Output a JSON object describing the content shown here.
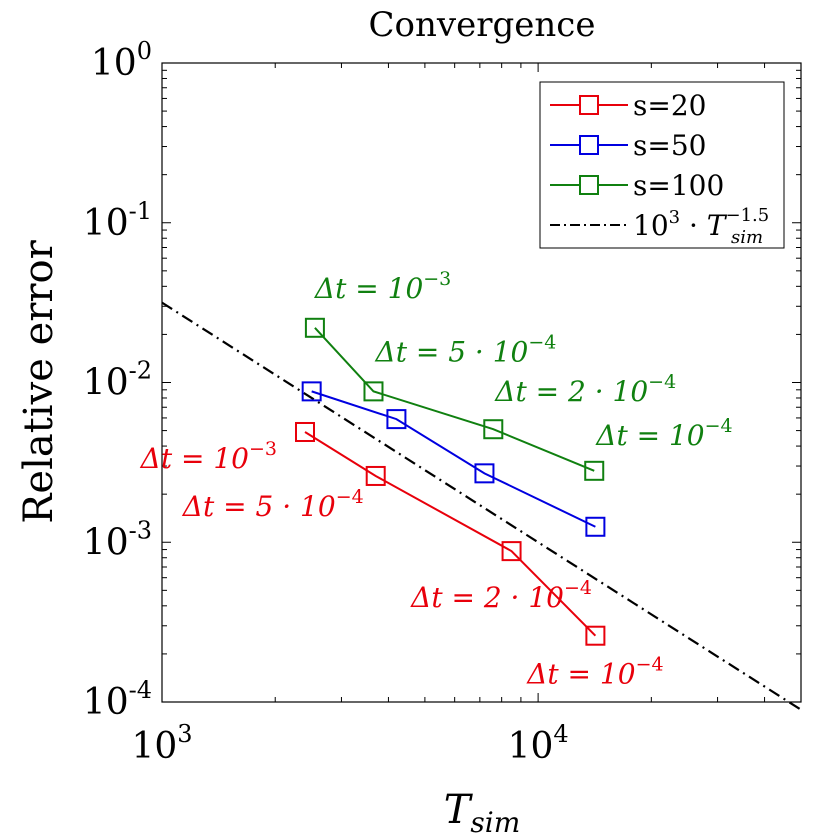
{
  "chart_data": {
    "type": "line",
    "title": "Convergence",
    "xlabel": "T_sim",
    "ylabel": "Relative error",
    "xscale": "log",
    "yscale": "log",
    "xlim": [
      1000,
      50000
    ],
    "ylim": [
      0.0001,
      1
    ],
    "x_ticks": [
      {
        "value": 1000,
        "base": "10",
        "exp": "3"
      },
      {
        "value": 10000,
        "base": "10",
        "exp": "4"
      }
    ],
    "y_ticks": [
      {
        "value": 0.0001,
        "base": "10",
        "exp": "-4"
      },
      {
        "value": 0.001,
        "base": "10",
        "exp": "-3"
      },
      {
        "value": 0.01,
        "base": "10",
        "exp": "-2"
      },
      {
        "value": 0.1,
        "base": "10",
        "exp": "-1"
      },
      {
        "value": 1,
        "base": "10",
        "exp": "0"
      }
    ],
    "legend_position": "top-right",
    "series": [
      {
        "name": "s=20",
        "color": "#e8000b",
        "marker": "square",
        "x": [
          2400,
          3700,
          8500,
          14200
        ],
        "y": [
          0.0049,
          0.0026,
          0.00088,
          0.00026
        ],
        "annotations": [
          {
            "main": "Δt = 10",
            "sup": "−3"
          },
          {
            "main": "Δt = 5 · 10",
            "sup": "−4"
          },
          {
            "main": "Δt = 2 · 10",
            "sup": "−4"
          },
          {
            "main": "Δt = 10",
            "sup": "−4"
          }
        ]
      },
      {
        "name": "s=50",
        "color": "#0000e0",
        "marker": "square",
        "x": [
          2500,
          4200,
          7200,
          14200
        ],
        "y": [
          0.0088,
          0.0059,
          0.0027,
          0.00125
        ],
        "annotations": []
      },
      {
        "name": "s=100",
        "color": "#108010",
        "marker": "square",
        "x": [
          2550,
          3650,
          7600,
          14100
        ],
        "y": [
          0.022,
          0.0088,
          0.0051,
          0.0028
        ],
        "annotations": [
          {
            "main": "Δt = 10",
            "sup": "−3"
          },
          {
            "main": "Δt = 5 · 10",
            "sup": "−4"
          },
          {
            "main": "Δt = 2 · 10",
            "sup": "−4"
          },
          {
            "main": "Δt = 10",
            "sup": "−4"
          }
        ]
      }
    ],
    "reference_line": {
      "legend_base": "10",
      "legend_exp": "3",
      "legend_dot": " · ",
      "legend_T": "T",
      "legend_sub": "sim",
      "legend_sup": "−1.5",
      "coefficient": 1000,
      "exponent": -1.5,
      "color": "#000000",
      "style": "dash-dot"
    }
  }
}
